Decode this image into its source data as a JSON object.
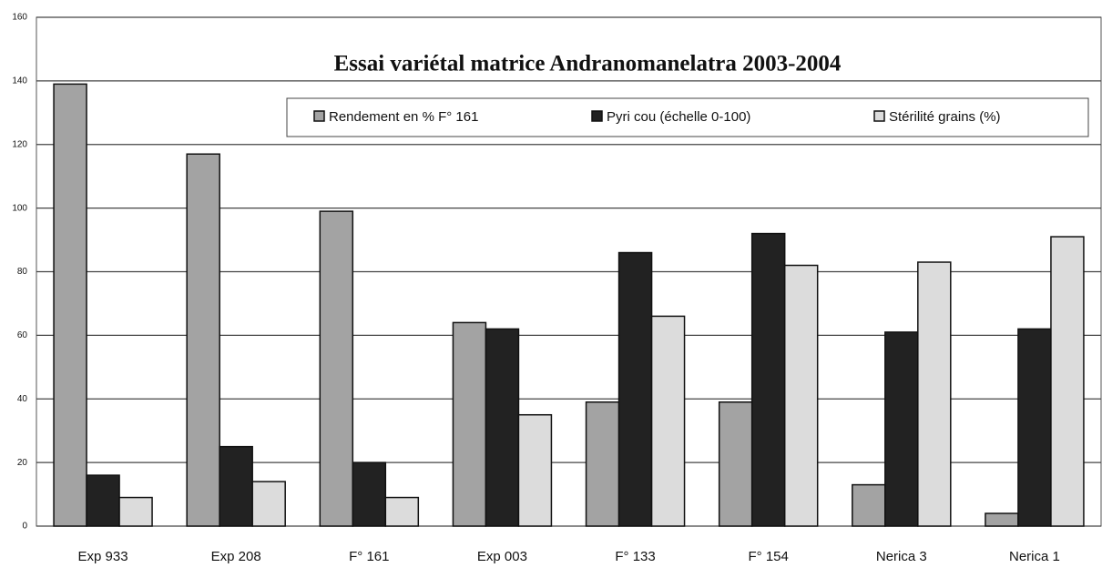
{
  "chart_data": {
    "type": "bar",
    "title": "Essai variétal matrice Andranomanelatra 2003-2004",
    "categories": [
      "Exp 933",
      "Exp 208",
      "F° 161",
      "Exp 003",
      "F° 133",
      "F° 154",
      "Nerica 3",
      "Nerica 1"
    ],
    "series": [
      {
        "name": "Rendement en % F° 161",
        "color": "#a3a3a3",
        "values": [
          139,
          117,
          99,
          64,
          39,
          39,
          13,
          4
        ]
      },
      {
        "name": "Pyri cou (échelle 0-100)",
        "color": "#222222",
        "values": [
          16,
          25,
          20,
          62,
          86,
          92,
          61,
          62
        ]
      },
      {
        "name": "Stérilité grains (%)",
        "color": "#dcdcdc",
        "values": [
          9,
          14,
          9,
          35,
          66,
          82,
          83,
          91
        ]
      }
    ],
    "ylim": [
      0,
      160
    ],
    "yticks": [
      0,
      20,
      40,
      60,
      80,
      100,
      120,
      140,
      160
    ],
    "grid": true,
    "legend": "top-right"
  }
}
